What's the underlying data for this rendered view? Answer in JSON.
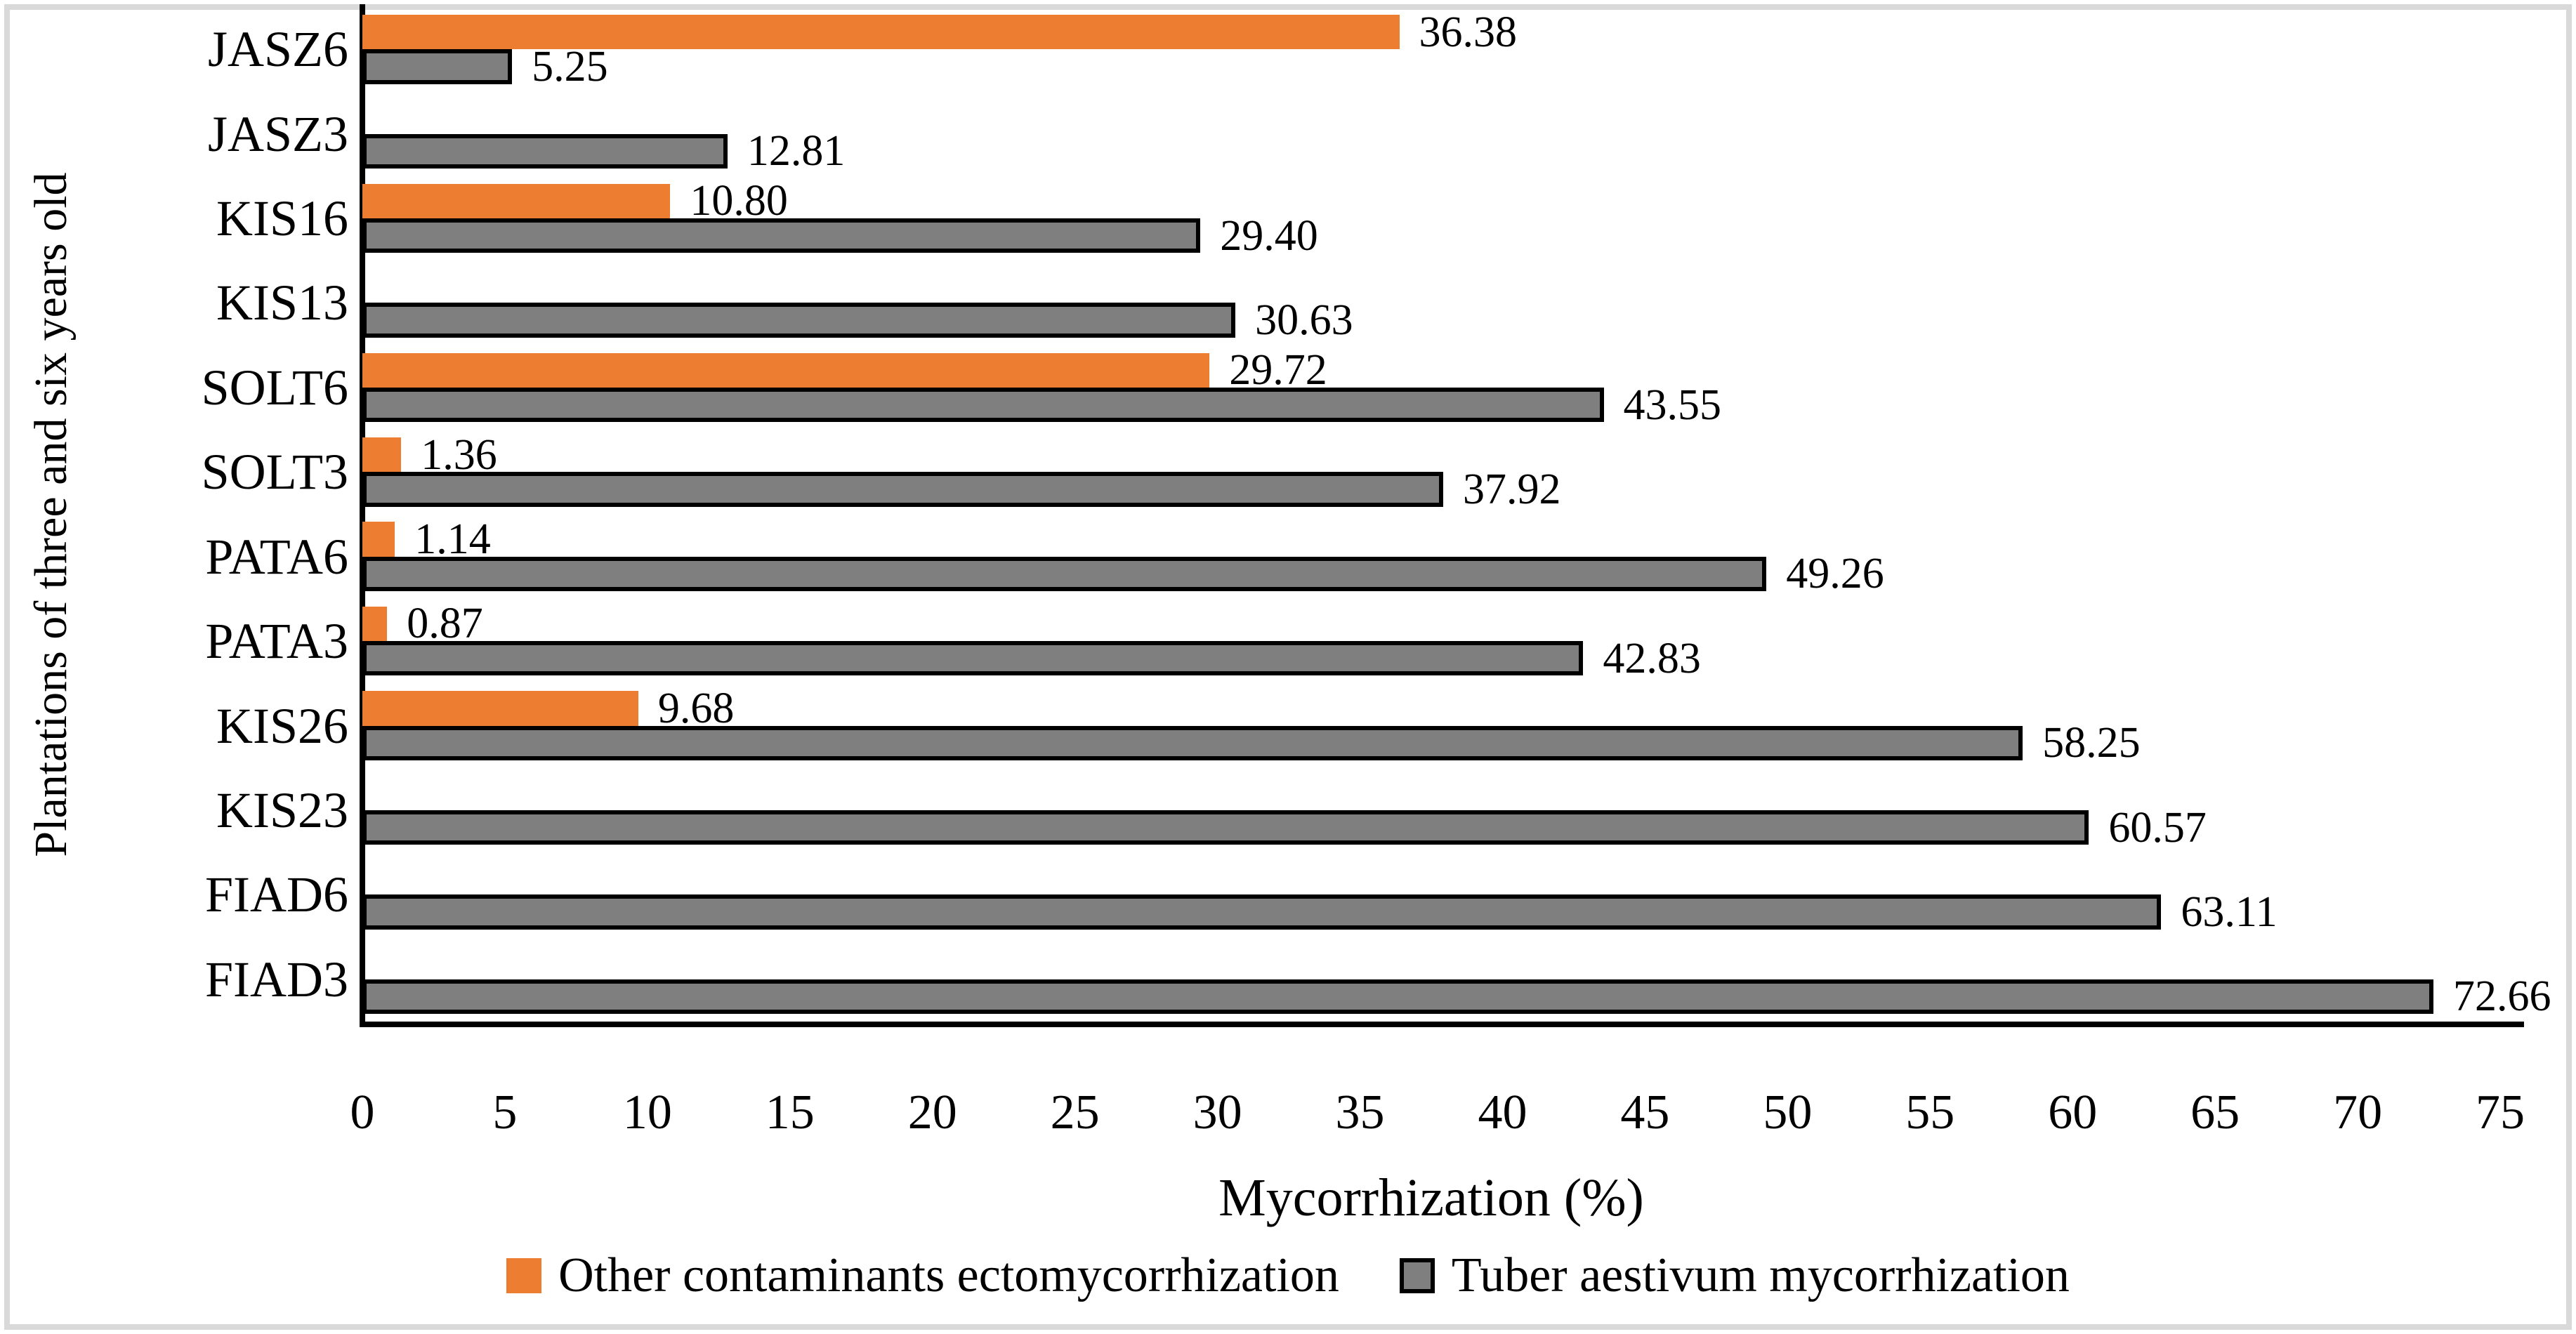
{
  "chart_data": {
    "type": "bar",
    "orientation": "horizontal",
    "xlabel": "Mycorrhization (%)",
    "ylabel": "Plantations of three and six years old",
    "categories": [
      "JASZ6",
      "JASZ3",
      "KIS16",
      "KIS13",
      "SOLT6",
      "SOLT3",
      "PATA6",
      "PATA3",
      "KIS26",
      "KIS23",
      "FIAD6",
      "FIAD3"
    ],
    "series": [
      {
        "name": "Other contaminants ectomycorrhization",
        "color": "#ED7D31",
        "values": [
          36.38,
          null,
          10.8,
          null,
          29.72,
          1.36,
          1.14,
          0.87,
          9.68,
          null,
          null,
          null
        ],
        "value_labels": [
          "36.38",
          "",
          "10.80",
          "",
          "29.72",
          "1.36",
          "1.14",
          "0.87",
          "9.68",
          "",
          "",
          ""
        ]
      },
      {
        "name": "Tuber aestivum mycorrhization",
        "color": "#7F7F7F",
        "border_color": "#000000",
        "values": [
          5.25,
          12.81,
          29.4,
          30.63,
          43.55,
          37.92,
          49.26,
          42.83,
          58.25,
          60.57,
          63.11,
          72.66
        ],
        "value_labels": [
          "5.25",
          "12.81",
          "29.40",
          "30.63",
          "43.55",
          "37.92",
          "49.26",
          "42.83",
          "58.25",
          "60.57",
          "63.11",
          "72.66"
        ]
      }
    ],
    "x_ticks": [
      "0",
      "5",
      "10",
      "15",
      "20",
      "25",
      "30",
      "35",
      "40",
      "45",
      "50",
      "55",
      "60",
      "65",
      "70",
      "75"
    ],
    "xlim": [
      0,
      75
    ],
    "grid": false,
    "legend_position": "bottom",
    "colors": {
      "accent_orange": "#ED7D31",
      "accent_gray": "#7F7F7F",
      "axis": "#000000",
      "frame": "#D9D9D9"
    }
  }
}
